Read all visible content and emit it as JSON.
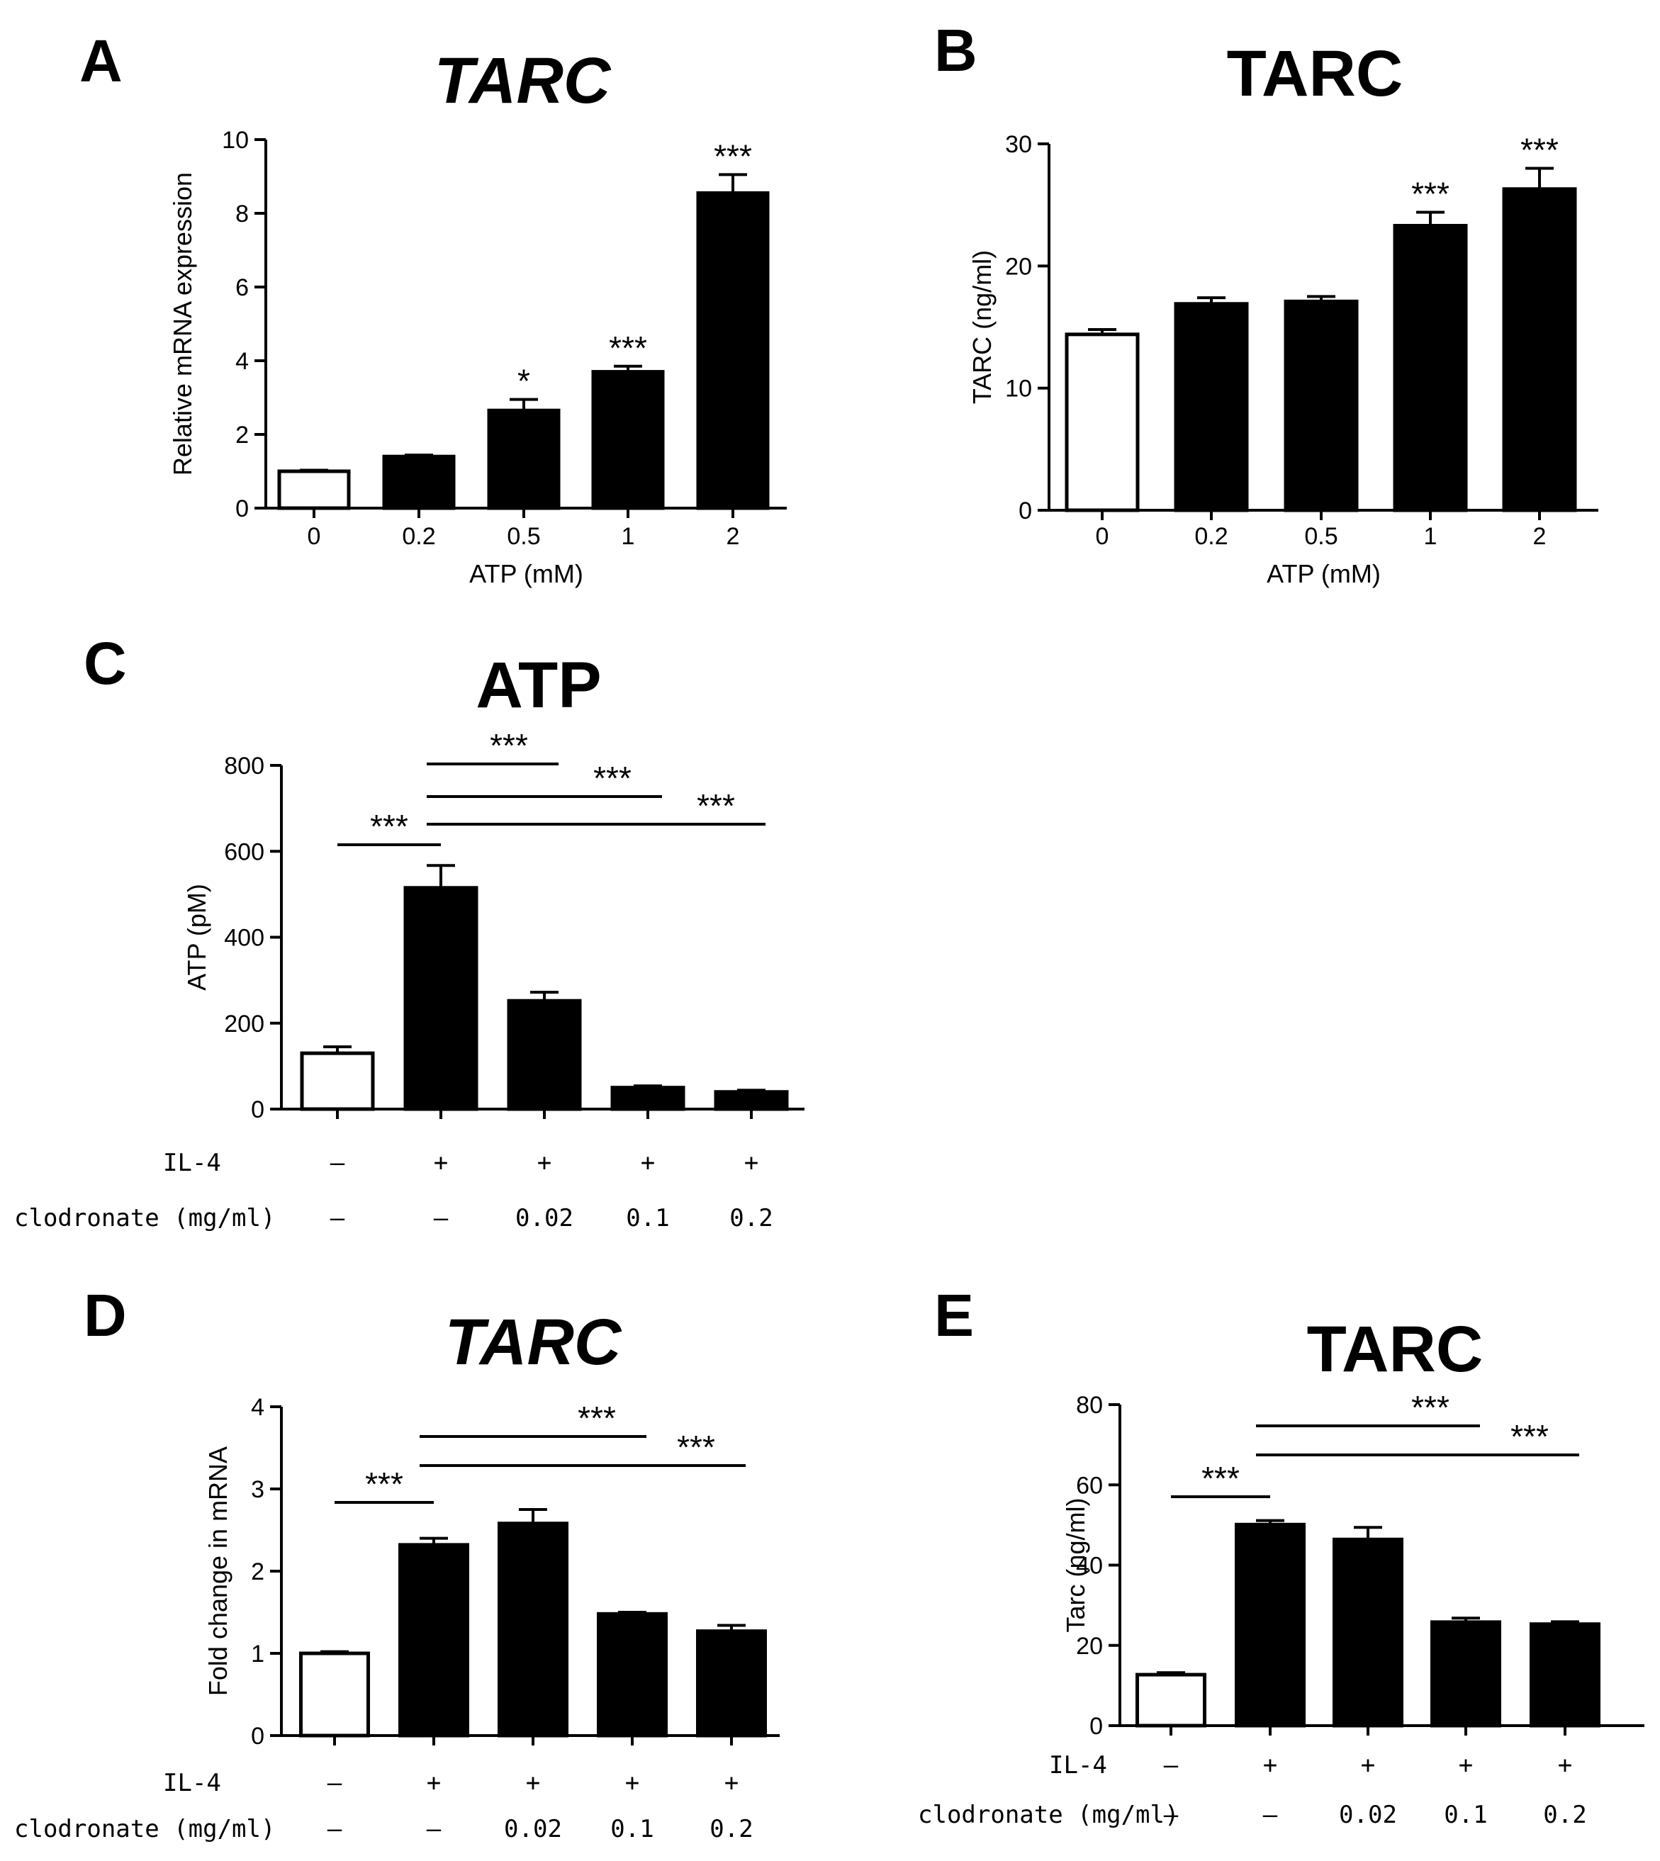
{
  "chart_data": [
    {
      "panel": "A",
      "type": "bar",
      "title": "TARC",
      "title_italic": true,
      "categories": [
        "0",
        "0.2",
        "0.5",
        "1",
        "2"
      ],
      "values": [
        1.0,
        1.4,
        2.65,
        3.7,
        8.55
      ],
      "errors": [
        0.03,
        0.04,
        0.3,
        0.15,
        0.5
      ],
      "fills": [
        "white",
        "black",
        "black",
        "black",
        "black"
      ],
      "significance": [
        "",
        "",
        "*",
        "***",
        "***"
      ],
      "ylim": [
        0,
        10
      ],
      "yticks": [
        0,
        2,
        4,
        6,
        8,
        10
      ],
      "ylabel": "Relative mRNA expression",
      "xlabel": "ATP (mM)"
    },
    {
      "panel": "B",
      "type": "bar",
      "title": "TARC",
      "title_italic": false,
      "categories": [
        "0",
        "0.2",
        "0.5",
        "1",
        "2"
      ],
      "values": [
        14.4,
        16.9,
        17.1,
        23.3,
        26.3
      ],
      "errors": [
        0.4,
        0.5,
        0.4,
        1.1,
        1.7
      ],
      "fills": [
        "white",
        "black",
        "black",
        "black",
        "black"
      ],
      "significance": [
        "",
        "",
        "",
        "***",
        "***"
      ],
      "ylim": [
        0,
        30
      ],
      "yticks": [
        0,
        10,
        20,
        30
      ],
      "ylabel": "TARC (ng/ml)",
      "xlabel": "ATP (mM)"
    },
    {
      "panel": "C",
      "type": "bar",
      "title": "ATP",
      "title_italic": false,
      "values": [
        130,
        515,
        252,
        50,
        40
      ],
      "errors": [
        15,
        52,
        20,
        4,
        4
      ],
      "fills": [
        "white",
        "black",
        "black",
        "black",
        "black"
      ],
      "ylim": [
        0,
        800
      ],
      "yticks": [
        0,
        200,
        400,
        600,
        800
      ],
      "ylabel": "ATP (pM)",
      "conditions": [
        {
          "label": "IL-4",
          "values": [
            "–",
            "+",
            "+",
            "+",
            "+"
          ]
        },
        {
          "label": "clodronate (mg/ml)",
          "values": [
            "–",
            "–",
            "0.02",
            "0.1",
            "0.2"
          ]
        }
      ],
      "brackets": [
        {
          "from": 0,
          "to": 1,
          "label": "***"
        },
        {
          "from": 1,
          "to": 2,
          "label": "***"
        },
        {
          "from": 1,
          "to": 3,
          "label": "***"
        },
        {
          "from": 1,
          "to": 4,
          "label": "***"
        }
      ]
    },
    {
      "panel": "D",
      "type": "bar",
      "title": "TARC",
      "title_italic": true,
      "values": [
        1.0,
        2.32,
        2.58,
        1.48,
        1.27
      ],
      "errors": [
        0.02,
        0.08,
        0.17,
        0.02,
        0.07
      ],
      "fills": [
        "white",
        "black",
        "black",
        "black",
        "black"
      ],
      "ylim": [
        0,
        4
      ],
      "yticks": [
        0,
        1,
        2,
        3,
        4
      ],
      "ylabel": "Fold change in mRNA",
      "conditions": [
        {
          "label": "IL-4",
          "values": [
            "–",
            "+",
            "+",
            "+",
            "+"
          ]
        },
        {
          "label": "clodronate (mg/ml)",
          "values": [
            "–",
            "–",
            "0.02",
            "0.1",
            "0.2"
          ]
        }
      ],
      "brackets": [
        {
          "from": 0,
          "to": 1,
          "label": "***"
        },
        {
          "from": 1,
          "to": 3,
          "label": "***"
        },
        {
          "from": 1,
          "to": 4,
          "label": "***"
        }
      ]
    },
    {
      "panel": "E",
      "type": "bar",
      "title": "TARC",
      "title_italic": false,
      "values": [
        12.7,
        50.1,
        46.4,
        25.8,
        25.3
      ],
      "errors": [
        0.5,
        1.0,
        3.0,
        1.0,
        0.6
      ],
      "fills": [
        "white",
        "black",
        "black",
        "black",
        "black"
      ],
      "ylim": [
        0,
        80
      ],
      "yticks": [
        0,
        20,
        40,
        60,
        80
      ],
      "ylabel": "Tarc (ng/ml)",
      "conditions": [
        {
          "label": "IL-4",
          "values": [
            "–",
            "+",
            "+",
            "+",
            "+"
          ]
        },
        {
          "label": "clodronate (mg/ml)",
          "values": [
            "–",
            "–",
            "0.02",
            "0.1",
            "0.2"
          ]
        }
      ],
      "brackets": [
        {
          "from": 0,
          "to": 1,
          "label": "***"
        },
        {
          "from": 1,
          "to": 3,
          "label": "***"
        },
        {
          "from": 1,
          "to": 4,
          "label": "***"
        }
      ]
    }
  ]
}
